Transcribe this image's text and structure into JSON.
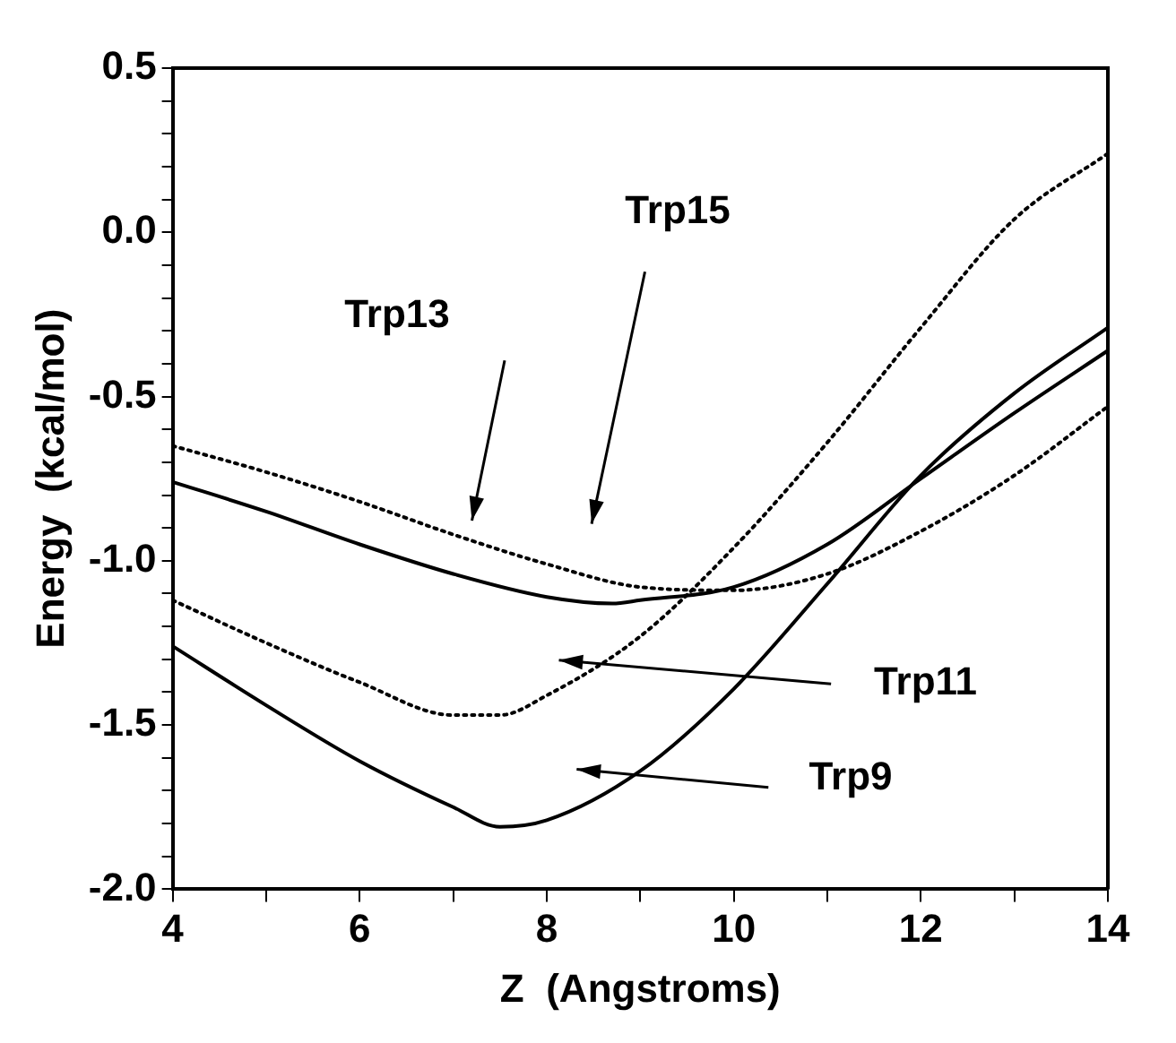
{
  "chart_data": {
    "type": "line",
    "xlabel": "Z  (Angstroms)",
    "ylabel": "Energy  (kcal/mol)",
    "xlim": [
      4,
      14
    ],
    "ylim": [
      -2.0,
      0.5
    ],
    "xticks": [
      4,
      {
        "value": 5,
        "label": null
      },
      6,
      {
        "value": 7,
        "label": null
      },
      8,
      {
        "value": 9,
        "label": null
      },
      10,
      {
        "value": 11,
        "label": null
      },
      12,
      {
        "value": 13,
        "label": null
      },
      14
    ],
    "yticks": [
      {
        "value": -2.0,
        "label": "-2.0"
      },
      {
        "value": -1.9,
        "label": null
      },
      {
        "value": -1.8,
        "label": null
      },
      {
        "value": -1.7,
        "label": null
      },
      {
        "value": -1.6,
        "label": null
      },
      {
        "value": -1.5,
        "label": "-1.5"
      },
      {
        "value": -1.4,
        "label": null
      },
      {
        "value": -1.3,
        "label": null
      },
      {
        "value": -1.2,
        "label": null
      },
      {
        "value": -1.1,
        "label": null
      },
      {
        "value": -1.0,
        "label": "-1.0"
      },
      {
        "value": -0.9,
        "label": null
      },
      {
        "value": -0.8,
        "label": null
      },
      {
        "value": -0.7,
        "label": null
      },
      {
        "value": -0.6,
        "label": null
      },
      {
        "value": -0.5,
        "label": "-0.5"
      },
      {
        "value": -0.4,
        "label": null
      },
      {
        "value": -0.3,
        "label": null
      },
      {
        "value": -0.2,
        "label": null
      },
      {
        "value": -0.1,
        "label": null
      },
      {
        "value": 0.0,
        "label": "0.0"
      },
      {
        "value": 0.1,
        "label": null
      },
      {
        "value": 0.2,
        "label": null
      },
      {
        "value": 0.3,
        "label": null
      },
      {
        "value": 0.4,
        "label": null
      },
      {
        "value": 0.5,
        "label": "0.5"
      }
    ],
    "grid": false,
    "legend": false,
    "marker": "none",
    "series": [
      {
        "color": "#000000",
        "line_style": "dotted",
        "x": [
          4,
          5,
          6,
          7,
          8,
          9,
          10,
          11,
          12,
          13,
          14
        ],
        "values": [
          -0.65,
          -0.73,
          -0.82,
          -0.92,
          -1.01,
          -1.08,
          -1.09,
          -1.04,
          -0.91,
          -0.74,
          -0.53
        ]
      },
      {
        "color": "#000000",
        "line_style": "solid",
        "x": [
          4,
          5,
          6,
          7,
          8,
          8.7,
          9,
          10,
          11,
          12,
          13,
          14
        ],
        "values": [
          -0.76,
          -0.85,
          -0.95,
          -1.04,
          -1.11,
          -1.13,
          -1.12,
          -1.08,
          -0.95,
          -0.75,
          -0.55,
          -0.36
        ]
      },
      {
        "color": "#000000",
        "line_style": "dotted",
        "x": [
          4,
          5,
          6,
          7,
          7.5,
          8,
          9,
          10,
          11,
          12,
          13,
          14
        ],
        "values": [
          -1.12,
          -1.25,
          -1.37,
          -1.47,
          -1.47,
          -1.41,
          -1.23,
          -0.96,
          -0.64,
          -0.29,
          0.04,
          0.24
        ]
      },
      {
        "color": "#000000",
        "line_style": "solid",
        "x": [
          4,
          5,
          6,
          7,
          7.5,
          8,
          9,
          10,
          11,
          12,
          13,
          14
        ],
        "values": [
          -1.26,
          -1.44,
          -1.61,
          -1.75,
          -1.81,
          -1.79,
          -1.64,
          -1.39,
          -1.07,
          -0.74,
          -0.49,
          -0.29
        ]
      }
    ],
    "annotations": [
      "Trp13",
      "Trp15",
      "Trp11",
      "Trp9"
    ]
  }
}
